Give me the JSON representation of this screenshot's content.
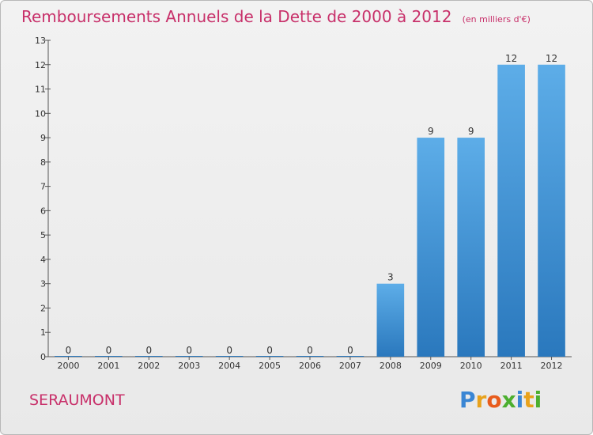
{
  "title": "Remboursements Annuels de la Dette de 2000 à 2012",
  "unit_note": "(en milliers d'€)",
  "commune": "SERAUMONT",
  "logo": {
    "letters": [
      "P",
      "r",
      "o",
      "x",
      "i",
      "t",
      "i"
    ],
    "colors": [
      "#3a86d4",
      "#e8a21c",
      "#e85c1c",
      "#4caf2f",
      "#3a86d4",
      "#e8a21c",
      "#4caf2f"
    ]
  },
  "chart_data": {
    "type": "bar",
    "categories": [
      "2000",
      "2001",
      "2002",
      "2003",
      "2004",
      "2005",
      "2006",
      "2007",
      "2008",
      "2009",
      "2010",
      "2011",
      "2012"
    ],
    "values": [
      0,
      0,
      0,
      0,
      0,
      0,
      0,
      0,
      3,
      9,
      9,
      12,
      12
    ],
    "data_labels": [
      "0",
      "0",
      "0",
      "0",
      "0",
      "0",
      "0",
      "0",
      "3",
      "9",
      "9",
      "12",
      "12"
    ],
    "yticks": [
      "0",
      "1",
      "2",
      "3",
      "4",
      "5",
      "6",
      "7",
      "8",
      "9",
      "10",
      "11",
      "12",
      "13"
    ],
    "ylim": [
      0,
      13
    ],
    "bar_color_top": "#5dade8",
    "bar_color_bottom": "#2a78bd",
    "grid": false
  }
}
